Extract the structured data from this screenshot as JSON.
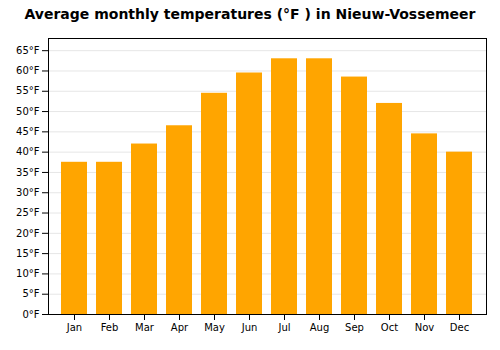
{
  "chart_data": {
    "type": "bar",
    "title": "Average monthly temperatures (°F ) in Nieuw-Vossemeer",
    "categories": [
      "Jan",
      "Feb",
      "Mar",
      "Apr",
      "May",
      "Jun",
      "Jul",
      "Aug",
      "Sep",
      "Oct",
      "Nov",
      "Dec"
    ],
    "values": [
      37.5,
      37.5,
      42,
      46.5,
      54.5,
      59.5,
      63,
      63,
      58.5,
      52,
      44.5,
      40
    ],
    "color": "#FFA500",
    "ylim": [
      0,
      68
    ],
    "yticks": [
      {
        "value": 0,
        "label": "0°F"
      },
      {
        "value": 5,
        "label": "5°F"
      },
      {
        "value": 10,
        "label": "10°F"
      },
      {
        "value": 15,
        "label": "15°F"
      },
      {
        "value": 20,
        "label": "20°F"
      },
      {
        "value": 25,
        "label": "25°F"
      },
      {
        "value": 30,
        "label": "30°F"
      },
      {
        "value": 35,
        "label": "35°F"
      },
      {
        "value": 40,
        "label": "40°F"
      },
      {
        "value": 45,
        "label": "45°F"
      },
      {
        "value": 50,
        "label": "50°F"
      },
      {
        "value": 55,
        "label": "55°F"
      },
      {
        "value": 60,
        "label": "60°F"
      },
      {
        "value": 65,
        "label": "65°F"
      }
    ],
    "grid": true
  }
}
